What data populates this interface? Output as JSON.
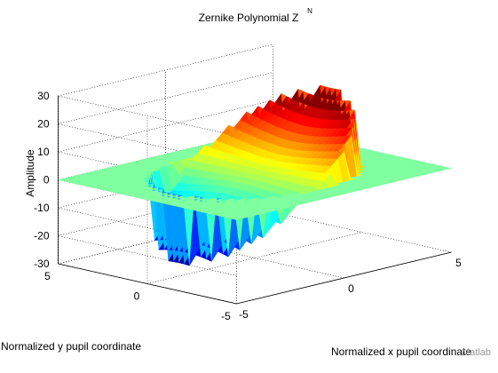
{
  "chart_data": {
    "type": "surface",
    "title": "Zernike Polynomial Z",
    "title_superscript": "N",
    "xlabel": "Normalized x pupil coordinate",
    "ylabel": "Normalized y pupil coordinate",
    "zlabel": "Amplitude",
    "xlim": [
      -5,
      5
    ],
    "ylim": [
      -5,
      5
    ],
    "zlim": [
      -30,
      30
    ],
    "x_ticks": [
      "-5",
      "0",
      "5"
    ],
    "y_ticks": [
      "5",
      "0",
      "-5"
    ],
    "z_ticks": [
      "30",
      "20",
      "10",
      "0",
      "-10",
      "-20",
      "-30"
    ],
    "colormap": "jet",
    "outside_pupil_value": 0,
    "outside_pupil_color": "#80ffa0",
    "pupil_radius": 3.6,
    "peak_amplitude": 20,
    "trough_amplitude": -25,
    "grid": true,
    "watermark": "Matlab"
  }
}
